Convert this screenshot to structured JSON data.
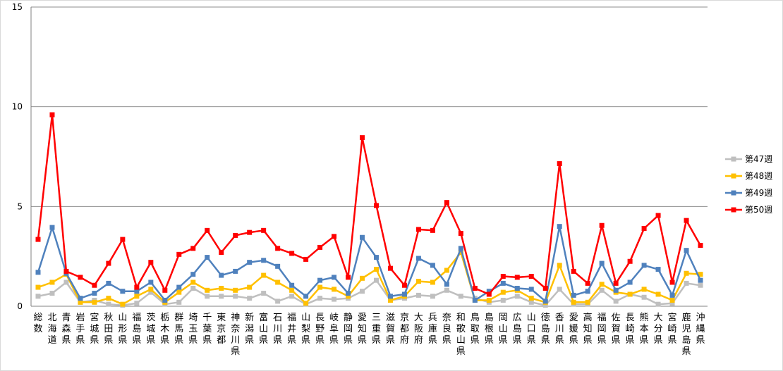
{
  "chart_data": {
    "type": "line",
    "ylim": [
      0,
      15
    ],
    "yticks": [
      0,
      5,
      10,
      15
    ],
    "grid": "horizontal",
    "legend_position": "right",
    "categories": [
      "総数",
      "北海道",
      "青森県",
      "岩手県",
      "宮城県",
      "秋田県",
      "山形県",
      "福島県",
      "茨城県",
      "栃木県",
      "群馬県",
      "埼玉県",
      "千葉県",
      "東京都",
      "神奈川県",
      "新潟県",
      "富山県",
      "石川県",
      "福井県",
      "山梨県",
      "長野県",
      "岐阜県",
      "静岡県",
      "愛知県",
      "三重県",
      "滋賀県",
      "京都府",
      "大阪府",
      "兵庫県",
      "奈良県",
      "和歌山県",
      "鳥取県",
      "島根県",
      "岡山県",
      "広島県",
      "山口県",
      "徳島県",
      "香川県",
      "愛媛県",
      "高知県",
      "福岡県",
      "佐賀県",
      "長崎県",
      "熊本県",
      "大分県",
      "宮崎県",
      "鹿児島県",
      "沖縄県"
    ],
    "series": [
      {
        "name": "第47週",
        "color": "#bfbfbf",
        "values": [
          0.5,
          0.65,
          1.2,
          0.2,
          0.3,
          0.1,
          0.05,
          0.15,
          0.7,
          0.1,
          0.2,
          0.9,
          0.5,
          0.5,
          0.5,
          0.4,
          0.65,
          0.25,
          0.5,
          0.1,
          0.4,
          0.35,
          0.4,
          0.75,
          1.3,
          0.3,
          0.4,
          0.55,
          0.5,
          0.8,
          0.5,
          0.4,
          0.2,
          0.3,
          0.5,
          0.2,
          0.05,
          0.85,
          0.1,
          0.1,
          0.8,
          0.25,
          0.6,
          0.45,
          0.1,
          0.15,
          1.15,
          1.05
        ]
      },
      {
        "name": "第48週",
        "color": "#ffc000",
        "values": [
          0.95,
          1.2,
          1.6,
          0.2,
          0.2,
          0.4,
          0.1,
          0.5,
          0.85,
          0.2,
          0.7,
          1.2,
          0.8,
          0.9,
          0.8,
          0.95,
          1.55,
          1.2,
          0.8,
          0.15,
          0.95,
          0.85,
          0.5,
          1.4,
          1.85,
          0.3,
          0.5,
          1.25,
          1.2,
          1.8,
          2.7,
          0.3,
          0.3,
          0.7,
          0.8,
          0.4,
          0.2,
          2.05,
          0.2,
          0.2,
          1.1,
          0.7,
          0.6,
          0.85,
          0.6,
          0.3,
          1.65,
          1.6
        ]
      },
      {
        "name": "第49週",
        "color": "#4f81bd",
        "values": [
          1.7,
          3.95,
          1.65,
          0.4,
          0.65,
          1.15,
          0.75,
          0.75,
          1.2,
          0.3,
          0.95,
          1.6,
          2.45,
          1.55,
          1.75,
          2.2,
          2.3,
          2.0,
          1.05,
          0.5,
          1.3,
          1.45,
          0.65,
          3.45,
          2.45,
          0.5,
          0.6,
          2.4,
          2.05,
          1.1,
          2.9,
          0.3,
          0.75,
          1.15,
          0.9,
          0.85,
          0.25,
          4.0,
          0.55,
          0.75,
          2.15,
          0.8,
          1.2,
          2.05,
          1.85,
          0.55,
          2.8,
          1.3
        ]
      },
      {
        "name": "第50週",
        "color": "#ff0000",
        "values": [
          3.35,
          9.6,
          1.75,
          1.45,
          1.05,
          2.15,
          3.35,
          0.95,
          2.2,
          0.8,
          2.6,
          2.9,
          3.8,
          2.7,
          3.55,
          3.7,
          3.8,
          2.9,
          2.65,
          2.35,
          2.95,
          3.5,
          1.45,
          8.45,
          5.05,
          1.9,
          1.05,
          3.85,
          3.8,
          5.2,
          3.65,
          0.9,
          0.6,
          1.5,
          1.45,
          1.5,
          0.9,
          7.15,
          1.75,
          1.15,
          4.05,
          1.15,
          2.25,
          3.9,
          4.55,
          1.2,
          4.3,
          3.05
        ]
      }
    ]
  }
}
